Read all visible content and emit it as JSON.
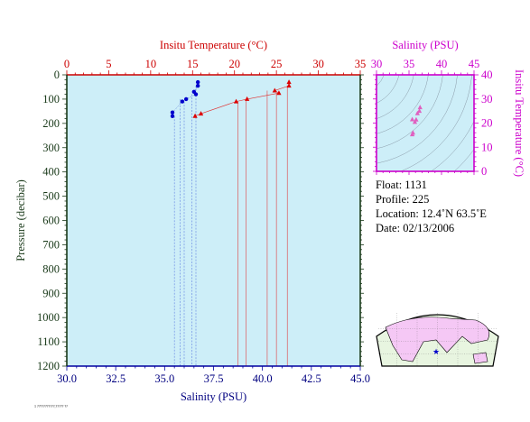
{
  "chart_data": [
    {
      "type": "scatter",
      "title": "",
      "top_axis": {
        "label": "Insitu Temperature (°C)",
        "ticks": [
          "0",
          "5",
          "10",
          "15",
          "20",
          "25",
          "30",
          "35"
        ],
        "range": [
          0,
          35
        ],
        "color": "#cc0000"
      },
      "bottom_axis": {
        "label": "Salinity (PSU)",
        "ticks": [
          "30.0",
          "32.5",
          "35.0",
          "37.5",
          "40.0",
          "42.5",
          "45.0"
        ],
        "range": [
          30,
          45
        ],
        "color": "#000080"
      },
      "left_axis": {
        "label": "Pressure (decibar)",
        "ticks": [
          "0",
          "100",
          "200",
          "300",
          "400",
          "500",
          "600",
          "700",
          "800",
          "900",
          "1000",
          "1100",
          "1200"
        ],
        "range": [
          0,
          1200
        ],
        "inverted": true,
        "color": "#1a3a1a"
      },
      "background": "#cdeef8",
      "series": [
        {
          "marker": "triangle",
          "color": "#dd0000",
          "axis": "temperature",
          "points": [
            {
              "x": 26.5,
              "y": 30
            },
            {
              "x": 26.5,
              "y": 45
            },
            {
              "x": 24.8,
              "y": 65
            },
            {
              "x": 25.3,
              "y": 75
            },
            {
              "x": 21.5,
              "y": 100
            },
            {
              "x": 20.2,
              "y": 110
            },
            {
              "x": 16.0,
              "y": 160
            },
            {
              "x": 15.3,
              "y": 170
            }
          ],
          "drop_lines": [
            {
              "x": 26.3,
              "y_from": 45,
              "y_to": 1200
            },
            {
              "x": 25.0,
              "y_from": 75,
              "y_to": 1200
            },
            {
              "x": 23.9,
              "y_from": 65,
              "y_to": 1200
            },
            {
              "x": 21.4,
              "y_from": 100,
              "y_to": 1200
            },
            {
              "x": 20.4,
              "y_from": 110,
              "y_to": 1200
            }
          ]
        },
        {
          "marker": "circle",
          "color": "#0000cc",
          "axis": "salinity",
          "points": [
            {
              "x": 36.7,
              "y": 30
            },
            {
              "x": 36.7,
              "y": 45
            },
            {
              "x": 36.5,
              "y": 70
            },
            {
              "x": 36.6,
              "y": 80
            },
            {
              "x": 36.1,
              "y": 100
            },
            {
              "x": 35.9,
              "y": 110
            },
            {
              "x": 35.4,
              "y": 155
            },
            {
              "x": 35.4,
              "y": 170
            }
          ],
          "drop_lines": [
            {
              "x": 36.6,
              "y_from": 45,
              "y_to": 1200
            },
            {
              "x": 36.4,
              "y_from": 80,
              "y_to": 1200
            },
            {
              "x": 36.0,
              "y_from": 110,
              "y_to": 1200
            },
            {
              "x": 35.8,
              "y_from": 100,
              "y_to": 1200
            },
            {
              "x": 35.5,
              "y_from": 170,
              "y_to": 1200
            }
          ]
        }
      ]
    },
    {
      "type": "scatter",
      "title": "",
      "top_axis": {
        "label": "Salinity (PSU)",
        "ticks": [
          "30",
          "35",
          "40",
          "45"
        ],
        "range": [
          30,
          45
        ],
        "color": "#cc00cc"
      },
      "right_axis": {
        "label": "Insitu Temperature (°C)",
        "ticks": [
          "0",
          "10",
          "20",
          "30",
          "40"
        ],
        "range": [
          0,
          40
        ],
        "color": "#cc00cc"
      },
      "background": "#cdeef8",
      "series": [
        {
          "marker": "triangle",
          "color": "#e060c0",
          "points": [
            {
              "x": 36.7,
              "y": 26.5
            },
            {
              "x": 36.6,
              "y": 25.0
            },
            {
              "x": 36.3,
              "y": 24.0
            },
            {
              "x": 36.1,
              "y": 21.4
            },
            {
              "x": 35.9,
              "y": 20.4
            },
            {
              "x": 35.5,
              "y": 21.5
            },
            {
              "x": 35.6,
              "y": 16.0
            },
            {
              "x": 35.5,
              "y": 15.3
            }
          ]
        }
      ]
    }
  ],
  "info": {
    "float": "Float:  1131",
    "profile": "Profile:  225",
    "location": "Location:  12.4˚N  63.5˚E",
    "date": "Date:  02/13/2006"
  },
  "map": {
    "land": "#f5c8f5",
    "ocean": "#e8f5e0",
    "marker": "★",
    "marker_color": "#0000cc"
  },
  "footer_note": "1 ???????????,????? ??"
}
